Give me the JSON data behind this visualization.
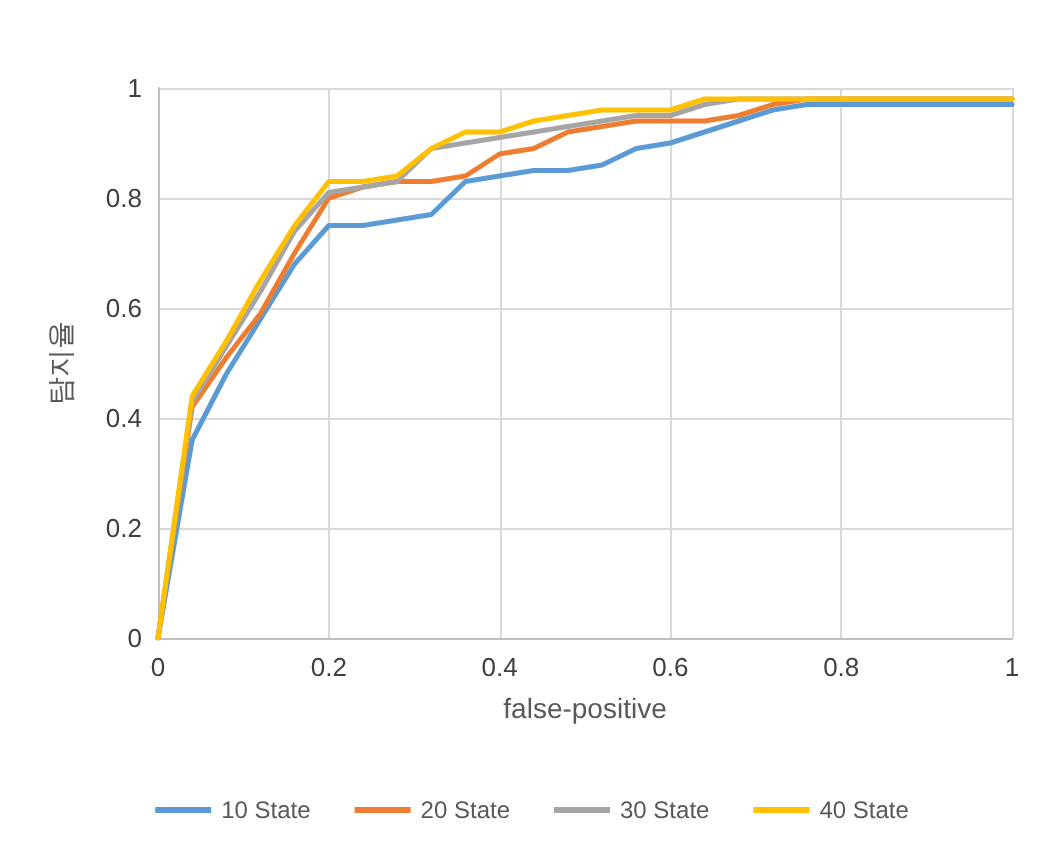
{
  "chart_data": {
    "type": "line",
    "xlabel": "false-positive",
    "ylabel": "탐지율",
    "x": [
      0,
      0.04,
      0.08,
      0.12,
      0.16,
      0.2,
      0.24,
      0.28,
      0.32,
      0.36,
      0.4,
      0.44,
      0.48,
      0.52,
      0.56,
      0.6,
      0.64,
      0.68,
      0.72,
      0.76,
      1
    ],
    "series": [
      {
        "name": "10 State",
        "color": "#5b9bd5",
        "values": [
          0,
          0.36,
          0.48,
          0.58,
          0.68,
          0.75,
          0.75,
          0.76,
          0.77,
          0.83,
          0.84,
          0.85,
          0.85,
          0.86,
          0.89,
          0.9,
          0.92,
          0.94,
          0.96,
          0.97,
          0.97
        ]
      },
      {
        "name": "20 State",
        "color": "#ed7d31",
        "values": [
          0,
          0.42,
          0.51,
          0.59,
          0.7,
          0.8,
          0.82,
          0.83,
          0.83,
          0.84,
          0.88,
          0.89,
          0.92,
          0.93,
          0.94,
          0.94,
          0.94,
          0.95,
          0.97,
          0.98,
          0.98
        ]
      },
      {
        "name": "30 State",
        "color": "#a5a5a5",
        "values": [
          0,
          0.43,
          0.53,
          0.63,
          0.74,
          0.81,
          0.82,
          0.83,
          0.89,
          0.9,
          0.91,
          0.92,
          0.93,
          0.94,
          0.95,
          0.95,
          0.97,
          0.98,
          0.98,
          0.98,
          0.98
        ]
      },
      {
        "name": "40 State",
        "color": "#ffc000",
        "values": [
          0,
          0.44,
          0.54,
          0.65,
          0.75,
          0.83,
          0.83,
          0.84,
          0.89,
          0.92,
          0.92,
          0.94,
          0.95,
          0.96,
          0.96,
          0.96,
          0.98,
          0.98,
          0.98,
          0.98,
          0.98
        ]
      }
    ],
    "xlim": [
      0,
      1
    ],
    "xticks": [
      0,
      0.2,
      0.4,
      0.6,
      0.8,
      1
    ],
    "ylim": [
      0,
      1
    ],
    "yticks": [
      0,
      0.2,
      0.4,
      0.6,
      0.8,
      1
    ],
    "grid": true,
    "legend": "bottom",
    "marker": "none",
    "line_style": "solid"
  }
}
